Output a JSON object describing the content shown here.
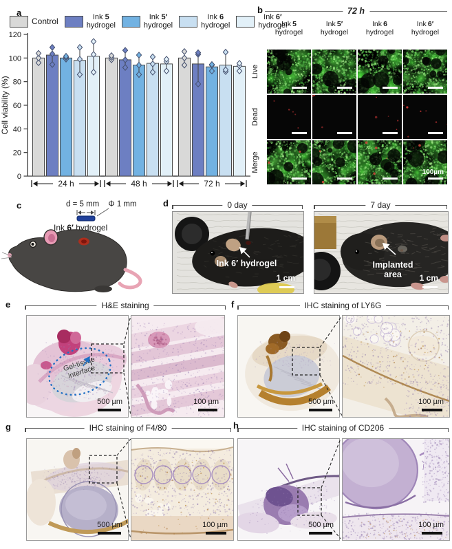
{
  "figure_labels": {
    "a": "a",
    "b": "b",
    "c": "c",
    "d": "d",
    "e": "e",
    "f": "f",
    "g": "g",
    "h": "h"
  },
  "chart_data": {
    "type": "bar",
    "ylabel": "Cell viability (%)",
    "ylim": [
      0,
      120
    ],
    "yticks": [
      0,
      20,
      40,
      60,
      80,
      100,
      120
    ],
    "groups": [
      "24 h",
      "48 h",
      "72 h"
    ],
    "legend_position": "top",
    "series": [
      {
        "name": "Control",
        "label_pre": "Control",
        "label_num": "",
        "label_suf": "",
        "color": "#d9d9d8",
        "values": [
          100,
          100,
          100
        ],
        "points": [
          [
            96,
            100,
            104
          ],
          [
            98.5,
            100.5,
            102
          ],
          [
            94,
            100,
            105.5
          ]
        ]
      },
      {
        "name": "Ink 5 hydrogel",
        "label_pre": "Ink",
        "label_num": "5",
        "label_suf": "hydrogel",
        "color": "#6d7fc2",
        "values": [
          102.5,
          98.5,
          95
        ],
        "points": [
          [
            94.5,
            103.5,
            109
          ],
          [
            92,
            98.5,
            106.5
          ],
          [
            78,
            103,
            104.5
          ]
        ]
      },
      {
        "name": "Ink 5′ hydrogel",
        "label_pre": "Ink",
        "label_num": "5′",
        "label_suf": "hydrogel",
        "color": "#72b2e2",
        "values": [
          100,
          94,
          92.5
        ],
        "points": [
          [
            99,
            100.5,
            101.5
          ],
          [
            86,
            94,
            102.5
          ],
          [
            89,
            94,
            94.5
          ]
        ]
      },
      {
        "name": "Ink 6 hydrogel",
        "label_pre": "Ink",
        "label_num": "6",
        "label_suf": "hydrogel",
        "color": "#c8dff1",
        "values": [
          98,
          95.5,
          94
        ],
        "points": [
          [
            86,
            99,
            109
          ],
          [
            88,
            95,
            101
          ],
          [
            88.5,
            90,
            105
          ]
        ]
      },
      {
        "name": "Ink 6′ hydrogel",
        "label_pre": "Ink",
        "label_num": "6′",
        "label_suf": "hydrogel",
        "color": "#e2f0f8",
        "values": [
          101.5,
          95,
          93
        ],
        "points": [
          [
            88,
            103,
            114
          ],
          [
            89,
            97,
            99
          ],
          [
            89,
            93.5,
            95.5
          ]
        ]
      }
    ]
  },
  "panel_b": {
    "title": "72 h",
    "columns": [
      {
        "pre": "Ink",
        "num": "5",
        "suf": "hydrogel"
      },
      {
        "pre": "Ink",
        "num": "5′",
        "suf": "hydrogel"
      },
      {
        "pre": "Ink",
        "num": "6",
        "suf": "hydrogel"
      },
      {
        "pre": "Ink",
        "num": "6′",
        "suf": "hydrogel"
      }
    ],
    "rows": [
      "Live",
      "Dead",
      "Merge"
    ],
    "scale_label": "100µm"
  },
  "panel_c": {
    "dim_label": "d = 5 mm",
    "phi_label": "Φ 1 mm",
    "annotation_pre": "Ink ",
    "annotation_num": "6′",
    "annotation_suf": " hydrogel"
  },
  "panel_d": {
    "photos": [
      {
        "title": "0 day",
        "annotation": "Ink 6′ hydrogel",
        "scale": "1 cm"
      },
      {
        "title": "7 day",
        "annotation_line1": "Implanted",
        "annotation_line2": "area",
        "scale": "1 cm"
      }
    ]
  },
  "panel_e": {
    "title": "H&E staining",
    "annotation_line1": "Gel-tissue",
    "annotation_line2": "interface",
    "scale_left": "500 µm",
    "scale_right": "100 µm"
  },
  "panel_f": {
    "title": "IHC staining of LY6G",
    "scale_left": "500 µm",
    "scale_right": "100 µm"
  },
  "panel_g": {
    "title": "IHC staining of F4/80",
    "scale_left": "500 µm",
    "scale_right": "100 µm"
  },
  "panel_h": {
    "title": "IHC staining of CD206",
    "scale_left": "500 µm",
    "scale_right": "100 µm"
  }
}
